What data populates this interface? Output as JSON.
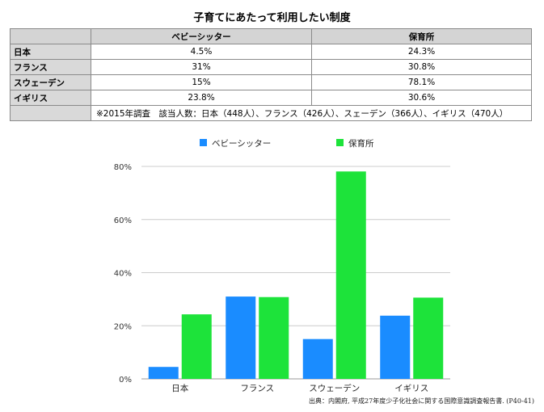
{
  "title": "子育てにあたって利用したい制度",
  "table": {
    "headers": [
      "ベビーシッター",
      "保育所"
    ],
    "rows": [
      {
        "label": "日本",
        "cells": [
          "4.5%",
          "24.3%"
        ]
      },
      {
        "label": "フランス",
        "cells": [
          "31%",
          "30.8%"
        ]
      },
      {
        "label": "スウェーデン",
        "cells": [
          "15%",
          "78.1%"
        ]
      },
      {
        "label": "イギリス",
        "cells": [
          "23.8%",
          "30.6%"
        ]
      }
    ],
    "note": "※2015年調査　該当人数：日本（448人）、フランス（426人）、スェーデン（366人）、イギリス（470人）"
  },
  "chart_data": {
    "type": "bar",
    "categories": [
      "日本",
      "フランス",
      "スウェーデン",
      "イギリス"
    ],
    "series": [
      {
        "name": "ベビーシッター",
        "values": [
          4.5,
          31,
          15,
          23.8
        ],
        "color": "#1a8cff"
      },
      {
        "name": "保育所",
        "values": [
          24.3,
          30.8,
          78.1,
          30.6
        ],
        "color": "#1de33a"
      }
    ],
    "ylim": [
      0,
      80
    ],
    "yticks": [
      0,
      20,
      40,
      60,
      80
    ],
    "ytick_labels": [
      "0%",
      "20%",
      "40%",
      "60%",
      "80%"
    ],
    "grid": true,
    "legend_position": "top"
  },
  "source": "出典：内閣府, 平成27年度少子化社会に関する国際意識調査報告書. (P40-41)"
}
